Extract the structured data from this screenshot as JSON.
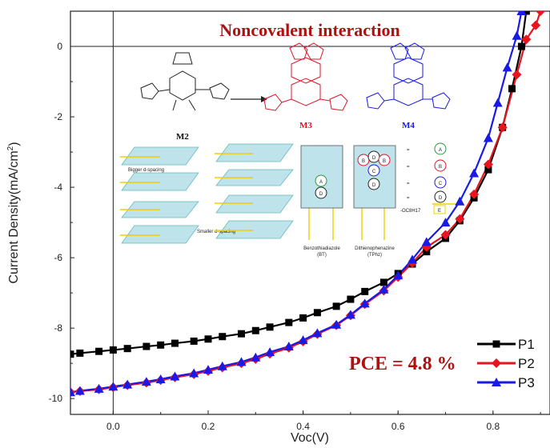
{
  "chart_data": {
    "type": "line",
    "title": "Noncovalent interaction",
    "xlabel": "Voc(V)",
    "ylabel": "Current Density(mA/cm²)",
    "xlim": [
      -0.09,
      0.92
    ],
    "ylim": [
      -10.45,
      1.0
    ],
    "xticks": [
      0.0,
      0.2,
      0.4,
      0.6,
      0.8
    ],
    "xtick_labels": [
      "0.0",
      "0.2",
      "0.4",
      "0.6",
      "0.8"
    ],
    "yticks": [
      0,
      -2,
      -4,
      -6,
      -8,
      -10
    ],
    "ytick_labels": [
      "0",
      "-2",
      "-4",
      "-6",
      "-8",
      "-10"
    ],
    "grid": false,
    "legend_position": "bottom-right",
    "annotation": "PCE = 4.8 %",
    "series": [
      {
        "name": "P1",
        "color": "#000000",
        "marker": "square",
        "x": [
          -0.09,
          -0.07,
          -0.03,
          0.0,
          0.03,
          0.07,
          0.1,
          0.13,
          0.17,
          0.2,
          0.23,
          0.27,
          0.3,
          0.33,
          0.37,
          0.4,
          0.43,
          0.47,
          0.5,
          0.53,
          0.57,
          0.6,
          0.63,
          0.66,
          0.7,
          0.73,
          0.76,
          0.79,
          0.82,
          0.84,
          0.86,
          0.87
        ],
        "y": [
          -8.74,
          -8.71,
          -8.66,
          -8.62,
          -8.58,
          -8.52,
          -8.48,
          -8.43,
          -8.37,
          -8.31,
          -8.24,
          -8.16,
          -8.07,
          -7.97,
          -7.84,
          -7.71,
          -7.56,
          -7.38,
          -7.18,
          -6.96,
          -6.7,
          -6.45,
          -6.18,
          -5.83,
          -5.45,
          -4.95,
          -4.3,
          -3.5,
          -2.3,
          -1.2,
          0.0,
          1.0
        ]
      },
      {
        "name": "P2",
        "color": "#e8141e",
        "marker": "diamond",
        "x": [
          -0.09,
          -0.07,
          -0.03,
          0.0,
          0.03,
          0.07,
          0.1,
          0.13,
          0.17,
          0.2,
          0.23,
          0.27,
          0.3,
          0.33,
          0.37,
          0.4,
          0.43,
          0.47,
          0.5,
          0.53,
          0.57,
          0.6,
          0.63,
          0.66,
          0.7,
          0.73,
          0.76,
          0.79,
          0.82,
          0.85,
          0.87,
          0.89,
          0.9
        ],
        "y": [
          -9.82,
          -9.79,
          -9.74,
          -9.68,
          -9.62,
          -9.55,
          -9.48,
          -9.4,
          -9.31,
          -9.22,
          -9.12,
          -9.0,
          -8.88,
          -8.73,
          -8.56,
          -8.38,
          -8.17,
          -7.92,
          -7.64,
          -7.32,
          -6.94,
          -6.55,
          -6.15,
          -5.7,
          -5.35,
          -4.9,
          -4.2,
          -3.35,
          -2.3,
          -0.8,
          0.2,
          0.6,
          1.0
        ]
      },
      {
        "name": "P3",
        "color": "#1a1ae6",
        "marker": "triangle",
        "x": [
          -0.09,
          -0.07,
          -0.03,
          0.0,
          0.03,
          0.07,
          0.1,
          0.13,
          0.17,
          0.2,
          0.23,
          0.27,
          0.3,
          0.33,
          0.37,
          0.4,
          0.43,
          0.47,
          0.5,
          0.53,
          0.57,
          0.6,
          0.63,
          0.66,
          0.7,
          0.73,
          0.76,
          0.79,
          0.81,
          0.83,
          0.85,
          0.86
        ],
        "y": [
          -9.82,
          -9.78,
          -9.72,
          -9.66,
          -9.6,
          -9.52,
          -9.45,
          -9.37,
          -9.28,
          -9.18,
          -9.08,
          -8.96,
          -8.83,
          -8.68,
          -8.52,
          -8.34,
          -8.14,
          -7.9,
          -7.62,
          -7.3,
          -6.9,
          -6.5,
          -6.05,
          -5.55,
          -5.0,
          -4.4,
          -3.6,
          -2.6,
          -1.6,
          -0.6,
          0.3,
          1.0
        ]
      }
    ],
    "inset": {
      "monomers": [
        "M2",
        "M3",
        "M4"
      ],
      "legend_letters": [
        "A",
        "B",
        "C",
        "D",
        "E"
      ],
      "box_labels": [
        "Benzothiadiazole\n(BT)",
        "Dithienophenazine\n(TPhz)"
      ],
      "spacing_labels": [
        "Bigger d-spacing",
        "Smaller d-spacing"
      ],
      "side_chain": "-OC8H17"
    }
  }
}
